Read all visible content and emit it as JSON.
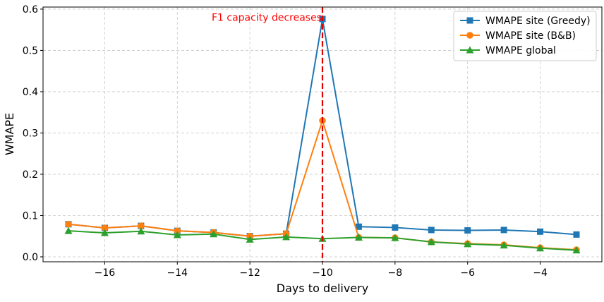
{
  "chart_data": {
    "type": "line",
    "title": "",
    "xlabel": "Days to delivery",
    "ylabel": "WMAPE",
    "xlim": [
      -17.7,
      -2.3
    ],
    "ylim": [
      -0.012,
      0.605
    ],
    "xticks": [
      -16,
      -14,
      -12,
      -10,
      -8,
      -6,
      -4
    ],
    "xtick_labels": [
      "−16",
      "−14",
      "−12",
      "−10",
      "−8",
      "−6",
      "−4"
    ],
    "yticks": [
      0.0,
      0.1,
      0.2,
      0.3,
      0.4,
      0.5,
      0.6
    ],
    "ytick_labels": [
      "0.0",
      "0.1",
      "0.2",
      "0.3",
      "0.4",
      "0.5",
      "0.6"
    ],
    "grid": true,
    "legend_position": "top-right",
    "x": [
      -17,
      -16,
      -15,
      -14,
      -13,
      -12,
      -11,
      -10,
      -9,
      -8,
      -7,
      -6,
      -5,
      -4,
      -3
    ],
    "series": [
      {
        "name": "WMAPE site (Greedy)",
        "color": "#1f77b4",
        "marker": "square",
        "values": [
          0.079,
          0.07,
          0.075,
          0.063,
          0.059,
          0.05,
          0.056,
          0.576,
          0.073,
          0.071,
          0.065,
          0.064,
          0.065,
          0.061,
          0.054
        ]
      },
      {
        "name": "WMAPE site (B&B)",
        "color": "#ff7f0e",
        "marker": "circle",
        "values": [
          0.079,
          0.07,
          0.075,
          0.063,
          0.059,
          0.05,
          0.056,
          0.33,
          0.047,
          0.046,
          0.036,
          0.032,
          0.029,
          0.022,
          0.017
        ]
      },
      {
        "name": "WMAPE global",
        "color": "#2ca02c",
        "marker": "triangle",
        "values": [
          0.063,
          0.058,
          0.062,
          0.053,
          0.055,
          0.042,
          0.048,
          0.044,
          0.047,
          0.046,
          0.036,
          0.031,
          0.028,
          0.021,
          0.016
        ]
      }
    ],
    "vline": {
      "x": -10,
      "color": "#e00000",
      "style": "dashed"
    },
    "annotation": {
      "text": "F1 capacity decreases",
      "x": -10,
      "y": 0.575,
      "color": "#ff0000"
    }
  }
}
